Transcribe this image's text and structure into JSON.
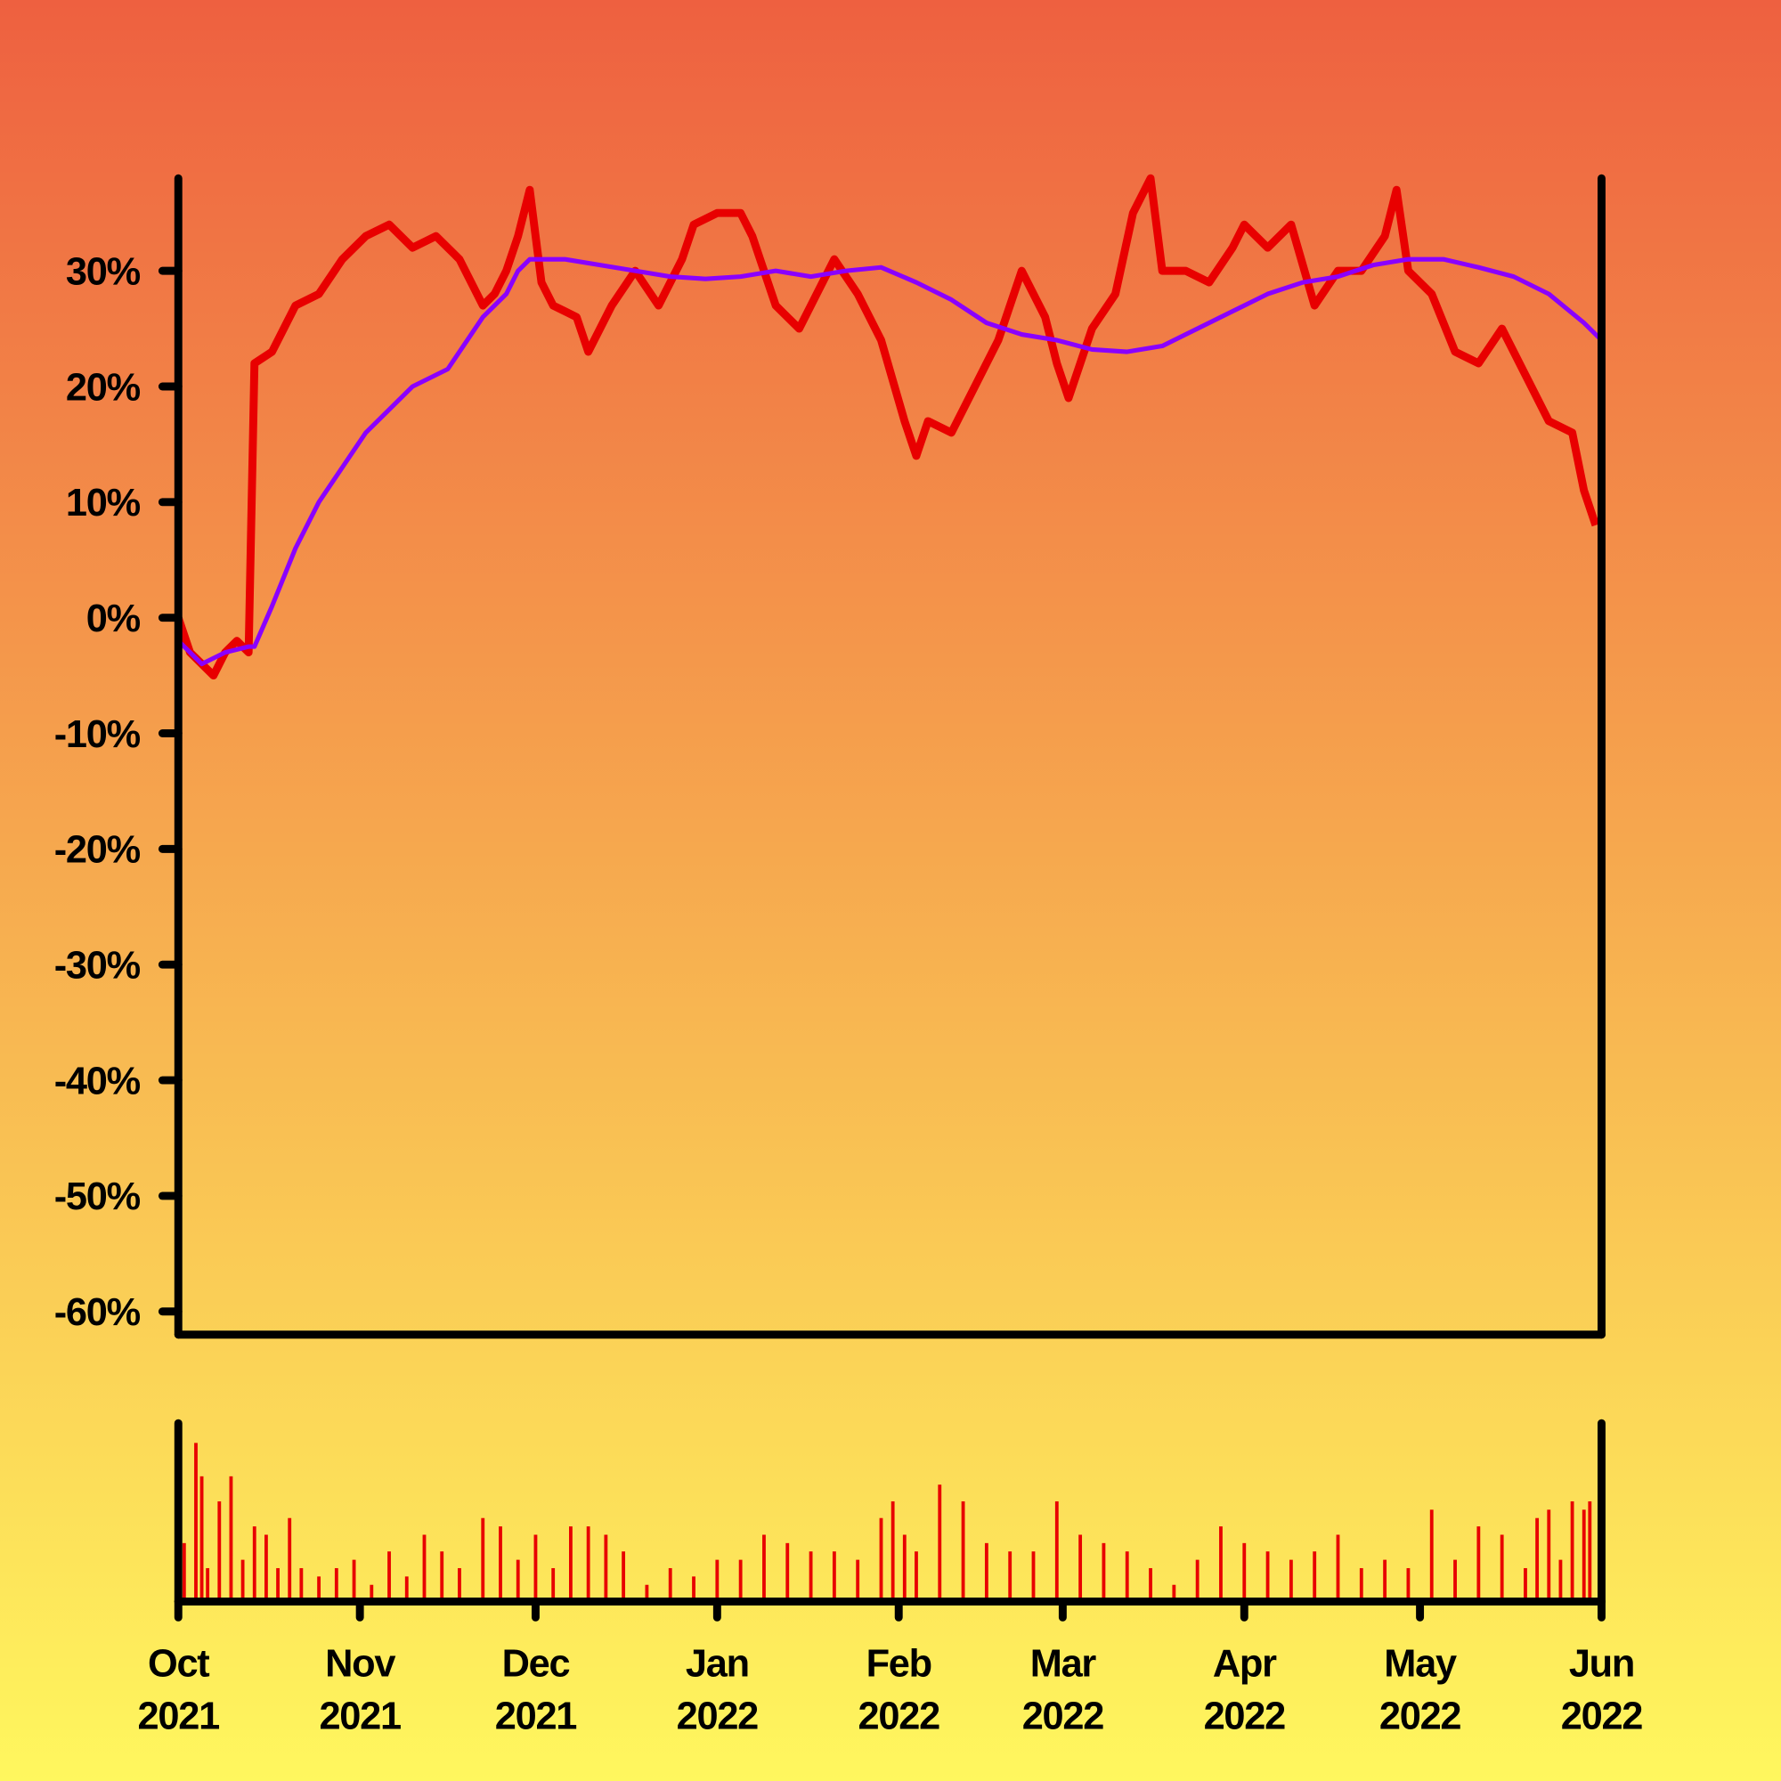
{
  "chart_data": {
    "type": "line",
    "xlim": [
      0,
      243
    ],
    "ylim": [
      -62,
      38
    ],
    "yticks": [
      {
        "value": 30,
        "label": "30%"
      },
      {
        "value": 20,
        "label": "20%"
      },
      {
        "value": 10,
        "label": "10%"
      },
      {
        "value": 0,
        "label": "0%"
      },
      {
        "value": -10,
        "label": "-10%"
      },
      {
        "value": -20,
        "label": "-20%"
      },
      {
        "value": -30,
        "label": "-30%"
      },
      {
        "value": -40,
        "label": "-40%"
      },
      {
        "value": -50,
        "label": "-50%"
      },
      {
        "value": -60,
        "label": "-60%"
      }
    ],
    "xticks": [
      {
        "value": 0,
        "label": "Oct 2021"
      },
      {
        "value": 31,
        "label": "Nov 2021"
      },
      {
        "value": 61,
        "label": "Dec 2021"
      },
      {
        "value": 92,
        "label": "Jan 2022"
      },
      {
        "value": 123,
        "label": "Feb 2022"
      },
      {
        "value": 151,
        "label": "Mar 2022"
      },
      {
        "value": 182,
        "label": "Apr 2022"
      },
      {
        "value": 212,
        "label": "May 2022"
      },
      {
        "value": 243,
        "label": "Jun 2022"
      }
    ],
    "grid": false,
    "series": [
      {
        "color": "#e80000",
        "x": [
          0,
          2,
          4,
          6,
          8,
          10,
          12,
          13,
          16,
          18,
          20,
          24,
          28,
          32,
          36,
          40,
          44,
          48,
          52,
          54,
          56,
          58,
          60,
          62,
          64,
          68,
          70,
          74,
          78,
          82,
          86,
          88,
          92,
          96,
          98,
          102,
          106,
          108,
          112,
          116,
          120,
          124,
          126,
          128,
          132,
          136,
          140,
          144,
          148,
          150,
          152,
          156,
          160,
          163,
          166,
          168,
          172,
          176,
          180,
          182,
          186,
          190,
          194,
          198,
          202,
          206,
          208,
          210,
          214,
          218,
          222,
          226,
          230,
          234,
          238,
          240,
          242
        ],
        "values": [
          0,
          -3,
          -4,
          -5,
          -3,
          -2,
          -3,
          22,
          23,
          25,
          27,
          28,
          31,
          33,
          34,
          32,
          33,
          31,
          27,
          28,
          30,
          33,
          37,
          29,
          27,
          26,
          23,
          27,
          30,
          27,
          31,
          34,
          35,
          35,
          33,
          27,
          25,
          27,
          31,
          28,
          24,
          17,
          14,
          17,
          16,
          20,
          24,
          30,
          26,
          22,
          19,
          25,
          28,
          35,
          38,
          30,
          30,
          29,
          32,
          34,
          32,
          34,
          27,
          30,
          30,
          33,
          37,
          30,
          28,
          23,
          22,
          25,
          21,
          17,
          16,
          11,
          8
        ]
      },
      {
        "color": "#8a00ff",
        "x": [
          0,
          4,
          8,
          12,
          13,
          16,
          20,
          24,
          28,
          32,
          36,
          40,
          44,
          46,
          52,
          56,
          58,
          60,
          66,
          72,
          78,
          84,
          90,
          96,
          102,
          108,
          114,
          120,
          126,
          132,
          138,
          144,
          150,
          156,
          162,
          168,
          174,
          180,
          186,
          192,
          198,
          204,
          210,
          216,
          222,
          228,
          234,
          240,
          243
        ],
        "values": [
          -2,
          -4,
          -3,
          -2.5,
          -2.5,
          1,
          6,
          10,
          13,
          16,
          18,
          20,
          21,
          21.5,
          26,
          28,
          30,
          31,
          31,
          30.5,
          30,
          29.5,
          29.3,
          29.5,
          30,
          29.5,
          30,
          30.3,
          29,
          27.5,
          25.5,
          24.5,
          24,
          23.2,
          23,
          23.5,
          25,
          26.5,
          28,
          29,
          29.5,
          30.5,
          31,
          31,
          30.3,
          29.5,
          28,
          25.5,
          24
        ]
      }
    ],
    "volume": {
      "color": "#e80000",
      "ylim": [
        0,
        100
      ],
      "x": [
        1,
        3,
        4,
        5,
        7,
        9,
        11,
        13,
        15,
        17,
        19,
        21,
        24,
        27,
        30,
        33,
        36,
        39,
        42,
        45,
        48,
        52,
        55,
        58,
        61,
        64,
        67,
        70,
        73,
        76,
        80,
        84,
        88,
        92,
        96,
        100,
        104,
        108,
        112,
        116,
        120,
        122,
        124,
        126,
        130,
        134,
        138,
        142,
        146,
        150,
        154,
        158,
        162,
        166,
        170,
        174,
        178,
        182,
        186,
        190,
        194,
        198,
        202,
        206,
        210,
        214,
        218,
        222,
        226,
        230,
        232,
        234,
        236,
        238,
        240,
        241
      ],
      "values": [
        35,
        95,
        75,
        20,
        60,
        75,
        25,
        45,
        40,
        20,
        50,
        20,
        15,
        20,
        25,
        10,
        30,
        15,
        40,
        30,
        20,
        50,
        45,
        25,
        40,
        20,
        45,
        45,
        40,
        30,
        10,
        20,
        15,
        25,
        25,
        40,
        35,
        30,
        30,
        25,
        50,
        60,
        40,
        30,
        70,
        60,
        35,
        30,
        30,
        60,
        40,
        35,
        30,
        20,
        10,
        25,
        45,
        35,
        30,
        25,
        30,
        40,
        20,
        25,
        20,
        55,
        25,
        45,
        40,
        20,
        50,
        55,
        25,
        60,
        55,
        60
      ]
    }
  }
}
